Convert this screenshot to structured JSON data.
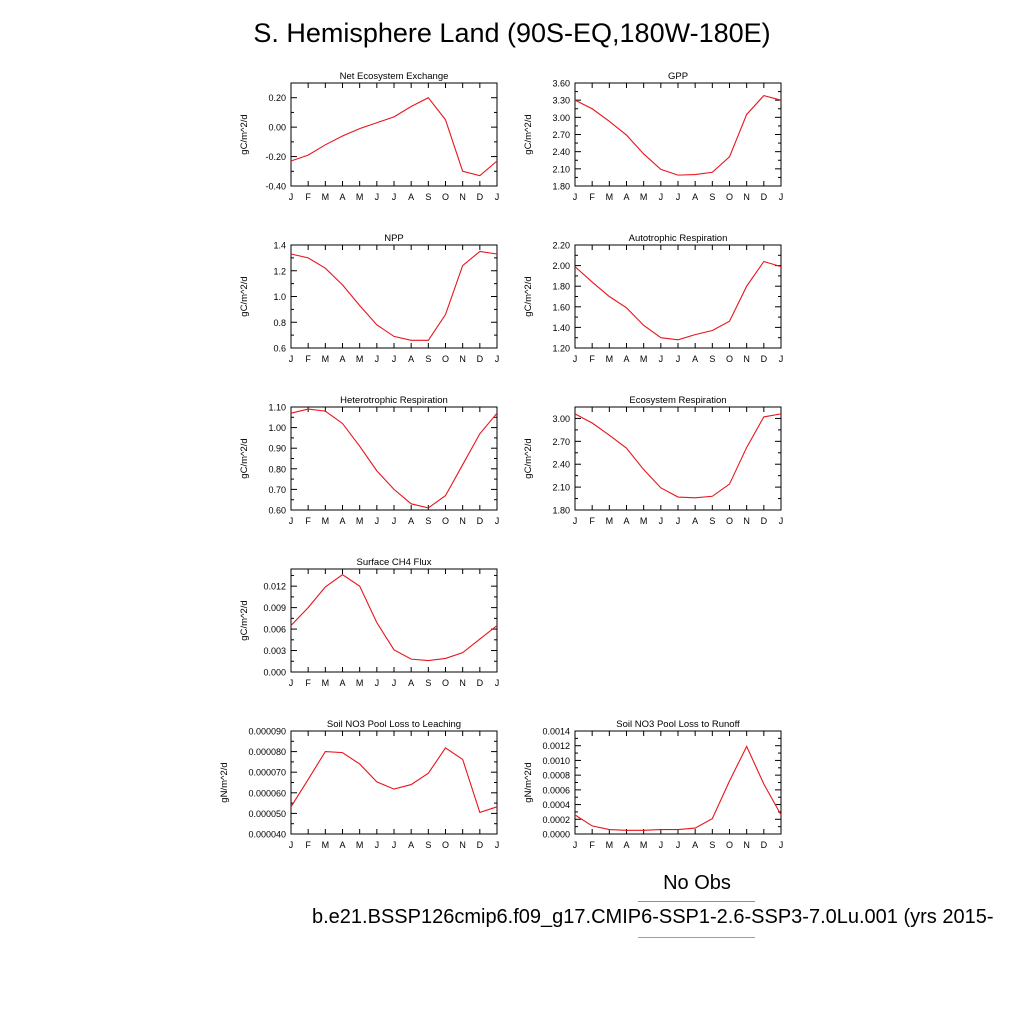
{
  "page": {
    "title": "S. Hemisphere Land (90S-EQ,180W-180E)",
    "legend_obs_label": "No Obs",
    "case_label": "b.e21.BSSP126cmip6.f09_g17.CMIP6-SSP1-2.6-SSP3-7.0Lu.001 (yrs 2015-",
    "colors": {
      "series": "#e8141c",
      "obs_line": "#7a86ee",
      "case_line": "#f27a86"
    }
  },
  "chart_data": [
    {
      "type": "line",
      "title": "Net Ecosystem Exchange",
      "ylabel": "gC/m^2/d",
      "categories": [
        "J",
        "F",
        "M",
        "A",
        "M",
        "J",
        "J",
        "A",
        "S",
        "O",
        "N",
        "D",
        "J"
      ],
      "ylim": [
        -0.4,
        0.3
      ],
      "yticks": [
        "-0.40",
        "-0.20",
        "0.00",
        "0.20"
      ],
      "ytick_values": [
        -0.4,
        -0.2,
        0.0,
        0.2
      ],
      "values": [
        -0.23,
        -0.19,
        -0.12,
        -0.06,
        -0.01,
        0.03,
        0.07,
        0.14,
        0.2,
        0.05,
        -0.3,
        -0.33,
        -0.23
      ]
    },
    {
      "type": "line",
      "title": "GPP",
      "ylabel": "gC/m^2/d",
      "categories": [
        "J",
        "F",
        "M",
        "A",
        "M",
        "J",
        "J",
        "A",
        "S",
        "O",
        "N",
        "D",
        "J"
      ],
      "ylim": [
        1.8,
        3.6
      ],
      "yticks": [
        "1.80",
        "2.10",
        "2.40",
        "2.70",
        "3.00",
        "3.30",
        "3.60"
      ],
      "ytick_values": [
        1.8,
        2.1,
        2.4,
        2.7,
        3.0,
        3.3,
        3.6
      ],
      "values": [
        3.3,
        3.15,
        2.93,
        2.69,
        2.36,
        2.09,
        1.99,
        2.0,
        2.04,
        2.31,
        3.05,
        3.38,
        3.3
      ]
    },
    {
      "type": "line",
      "title": "NPP",
      "ylabel": "gC/m^2/d",
      "categories": [
        "J",
        "F",
        "M",
        "A",
        "M",
        "J",
        "J",
        "A",
        "S",
        "O",
        "N",
        "D",
        "J"
      ],
      "ylim": [
        0.6,
        1.4
      ],
      "yticks": [
        "0.6",
        "0.8",
        "1.0",
        "1.2",
        "1.4"
      ],
      "ytick_values": [
        0.6,
        0.8,
        1.0,
        1.2,
        1.4
      ],
      "values": [
        1.33,
        1.3,
        1.22,
        1.09,
        0.93,
        0.78,
        0.69,
        0.66,
        0.66,
        0.86,
        1.24,
        1.35,
        1.33
      ]
    },
    {
      "type": "line",
      "title": "Autotrophic Respiration",
      "ylabel": "gC/m^2/d",
      "categories": [
        "J",
        "F",
        "M",
        "A",
        "M",
        "J",
        "J",
        "A",
        "S",
        "O",
        "N",
        "D",
        "J"
      ],
      "ylim": [
        1.2,
        2.2
      ],
      "yticks": [
        "1.20",
        "1.40",
        "1.60",
        "1.80",
        "2.00",
        "2.20"
      ],
      "ytick_values": [
        1.2,
        1.4,
        1.6,
        1.8,
        2.0,
        2.2
      ],
      "values": [
        1.99,
        1.84,
        1.7,
        1.59,
        1.42,
        1.3,
        1.28,
        1.33,
        1.37,
        1.46,
        1.8,
        2.04,
        1.99
      ]
    },
    {
      "type": "line",
      "title": "Heterotrophic Respiration",
      "ylabel": "gC/m^2/d",
      "categories": [
        "J",
        "F",
        "M",
        "A",
        "M",
        "J",
        "J",
        "A",
        "S",
        "O",
        "N",
        "D",
        "J"
      ],
      "ylim": [
        0.6,
        1.1
      ],
      "yticks": [
        "0.60",
        "0.70",
        "0.80",
        "0.90",
        "1.00",
        "1.10"
      ],
      "ytick_values": [
        0.6,
        0.7,
        0.8,
        0.9,
        1.0,
        1.1
      ],
      "values": [
        1.07,
        1.09,
        1.08,
        1.02,
        0.91,
        0.79,
        0.7,
        0.63,
        0.61,
        0.67,
        0.82,
        0.97,
        1.07
      ]
    },
    {
      "type": "line",
      "title": "Ecosystem Respiration",
      "ylabel": "gC/m^2/d",
      "categories": [
        "J",
        "F",
        "M",
        "A",
        "M",
        "J",
        "J",
        "A",
        "S",
        "O",
        "N",
        "D",
        "J"
      ],
      "ylim": [
        1.8,
        3.15
      ],
      "yticks": [
        "1.80",
        "2.10",
        "2.40",
        "2.70",
        "3.00"
      ],
      "ytick_values": [
        1.8,
        2.1,
        2.4,
        2.7,
        3.0
      ],
      "values": [
        3.06,
        2.94,
        2.78,
        2.61,
        2.33,
        2.09,
        1.97,
        1.96,
        1.98,
        2.14,
        2.62,
        3.02,
        3.06
      ]
    },
    {
      "type": "line",
      "title": "Surface CH4 Flux",
      "ylabel": "gC/m^2/d",
      "categories": [
        "J",
        "F",
        "M",
        "A",
        "M",
        "J",
        "J",
        "A",
        "S",
        "O",
        "N",
        "D",
        "J"
      ],
      "ylim": [
        0.0,
        0.0144
      ],
      "yticks": [
        "0.000",
        "0.003",
        "0.006",
        "0.009",
        "0.012"
      ],
      "ytick_values": [
        0.0,
        0.003,
        0.006,
        0.009,
        0.012
      ],
      "values": [
        0.0065,
        0.009,
        0.0119,
        0.0136,
        0.012,
        0.0069,
        0.0031,
        0.0018,
        0.0016,
        0.0019,
        0.0027,
        0.0046,
        0.0065
      ]
    },
    {
      "type": "line",
      "title": "Soil NO3 Pool Loss to Leaching",
      "ylabel": "gN/m^2/d",
      "categories": [
        "J",
        "F",
        "M",
        "A",
        "M",
        "J",
        "J",
        "A",
        "S",
        "O",
        "N",
        "D",
        "J"
      ],
      "ylim": [
        4e-05,
        9e-05
      ],
      "yticks": [
        "0.000040",
        "0.000050",
        "0.000060",
        "0.000070",
        "0.000080",
        "0.000090"
      ],
      "ytick_values": [
        4e-05,
        5e-05,
        6e-05,
        7e-05,
        8e-05,
        9e-05
      ],
      "values": [
        5.32e-05,
        6.65e-05,
        8e-05,
        7.95e-05,
        7.4e-05,
        6.53e-05,
        6.18e-05,
        6.4e-05,
        6.95e-05,
        8.18e-05,
        7.62e-05,
        5.05e-05,
        5.32e-05
      ]
    },
    {
      "type": "line",
      "title": "Soil NO3 Pool Loss to Runoff",
      "ylabel": "gN/m^2/d",
      "categories": [
        "J",
        "F",
        "M",
        "A",
        "M",
        "J",
        "J",
        "A",
        "S",
        "O",
        "N",
        "D",
        "J"
      ],
      "ylim": [
        0.0,
        0.0014
      ],
      "yticks": [
        "0.0000",
        "0.0002",
        "0.0004",
        "0.0006",
        "0.0008",
        "0.0010",
        "0.0012",
        "0.0014"
      ],
      "ytick_values": [
        0.0,
        0.0002,
        0.0004,
        0.0006,
        0.0008,
        0.001,
        0.0012,
        0.0014
      ],
      "values": [
        0.00026,
        0.00011,
        6e-05,
        5e-05,
        5e-05,
        6e-05,
        6e-05,
        8e-05,
        0.00021,
        0.00072,
        0.00119,
        0.00068,
        0.00026
      ]
    }
  ]
}
